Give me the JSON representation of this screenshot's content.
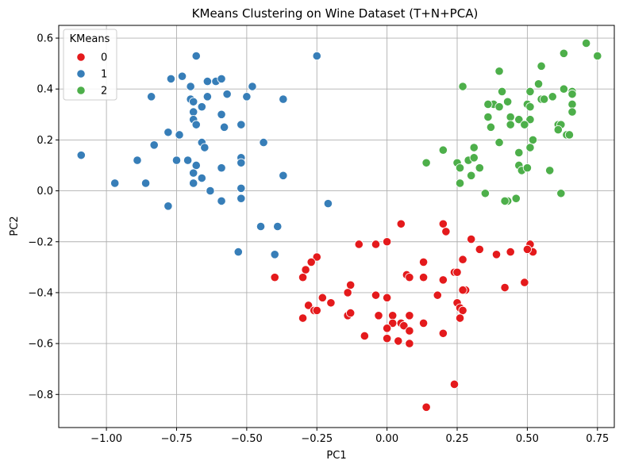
{
  "chart_data": {
    "type": "scatter",
    "title": "KMeans Clustering on Wine Dataset (T+N+PCA)",
    "xlabel": "PC1",
    "ylabel": "PC2",
    "xlim": [
      -1.17,
      0.81
    ],
    "ylim": [
      -0.93,
      0.65
    ],
    "xticks": [
      -1.0,
      -0.75,
      -0.5,
      -0.25,
      0.0,
      0.25,
      0.5,
      0.75
    ],
    "xtick_labels": [
      "−1.00",
      "−0.75",
      "−0.50",
      "−0.25",
      "0.00",
      "0.25",
      "0.50",
      "0.75"
    ],
    "yticks": [
      -0.8,
      -0.6,
      -0.4,
      -0.2,
      0.0,
      0.2,
      0.4,
      0.6
    ],
    "ytick_labels": [
      "−0.8",
      "−0.6",
      "−0.4",
      "−0.2",
      "0.0",
      "0.2",
      "0.4",
      "0.6"
    ],
    "grid": true,
    "legend": {
      "title": "KMeans",
      "position": "top-left"
    },
    "series": [
      {
        "name": "0",
        "color": "#e41a1c",
        "points": [
          [
            0.05,
            -0.13
          ],
          [
            0.2,
            -0.13
          ],
          [
            0.21,
            -0.16
          ],
          [
            0.3,
            -0.19
          ],
          [
            0.33,
            -0.23
          ],
          [
            0.44,
            -0.24
          ],
          [
            0.39,
            -0.25
          ],
          [
            0.51,
            -0.21
          ],
          [
            0.52,
            -0.24
          ],
          [
            0.5,
            -0.23
          ],
          [
            -0.1,
            -0.21
          ],
          [
            -0.04,
            -0.21
          ],
          [
            0.0,
            -0.2
          ],
          [
            -0.25,
            -0.26
          ],
          [
            -0.27,
            -0.28
          ],
          [
            -0.29,
            -0.31
          ],
          [
            -0.3,
            -0.34
          ],
          [
            -0.4,
            -0.34
          ],
          [
            0.07,
            -0.33
          ],
          [
            0.08,
            -0.34
          ],
          [
            0.13,
            -0.34
          ],
          [
            0.2,
            -0.35
          ],
          [
            0.24,
            -0.32
          ],
          [
            0.25,
            -0.32
          ],
          [
            0.27,
            -0.27
          ],
          [
            -0.13,
            -0.37
          ],
          [
            -0.14,
            -0.4
          ],
          [
            -0.04,
            -0.41
          ],
          [
            0.0,
            -0.42
          ],
          [
            -0.23,
            -0.42
          ],
          [
            -0.28,
            -0.45
          ],
          [
            -0.26,
            -0.47
          ],
          [
            -0.25,
            -0.47
          ],
          [
            -0.2,
            -0.44
          ],
          [
            0.18,
            -0.41
          ],
          [
            0.25,
            -0.44
          ],
          [
            0.26,
            -0.46
          ],
          [
            0.27,
            -0.47
          ],
          [
            0.28,
            -0.39
          ],
          [
            0.27,
            -0.39
          ],
          [
            0.42,
            -0.38
          ],
          [
            0.49,
            -0.36
          ],
          [
            -0.3,
            -0.5
          ],
          [
            -0.14,
            -0.49
          ],
          [
            -0.13,
            -0.48
          ],
          [
            -0.03,
            -0.49
          ],
          [
            0.02,
            -0.49
          ],
          [
            0.08,
            -0.49
          ],
          [
            0.02,
            -0.52
          ],
          [
            0.05,
            -0.52
          ],
          [
            0.06,
            -0.53
          ],
          [
            0.13,
            -0.52
          ],
          [
            0.26,
            -0.5
          ],
          [
            0.0,
            -0.54
          ],
          [
            0.0,
            -0.58
          ],
          [
            -0.08,
            -0.57
          ],
          [
            0.04,
            -0.59
          ],
          [
            0.08,
            -0.55
          ],
          [
            0.08,
            -0.6
          ],
          [
            0.2,
            -0.56
          ],
          [
            0.13,
            -0.28
          ],
          [
            0.24,
            -0.76
          ],
          [
            0.14,
            -0.85
          ]
        ]
      },
      {
        "name": "1",
        "color": "#377eb8",
        "points": [
          [
            -0.68,
            0.53
          ],
          [
            -0.25,
            0.53
          ],
          [
            -0.73,
            0.45
          ],
          [
            -0.77,
            0.44
          ],
          [
            -0.64,
            0.43
          ],
          [
            -0.61,
            0.43
          ],
          [
            -0.59,
            0.44
          ],
          [
            -0.7,
            0.41
          ],
          [
            -0.48,
            0.41
          ],
          [
            -0.84,
            0.37
          ],
          [
            -0.7,
            0.36
          ],
          [
            -0.69,
            0.35
          ],
          [
            -0.64,
            0.37
          ],
          [
            -0.57,
            0.38
          ],
          [
            -0.5,
            0.37
          ],
          [
            -0.37,
            0.36
          ],
          [
            -0.66,
            0.33
          ],
          [
            -0.69,
            0.31
          ],
          [
            -0.59,
            0.3
          ],
          [
            -0.69,
            0.28
          ],
          [
            -0.68,
            0.26
          ],
          [
            -0.52,
            0.26
          ],
          [
            -0.58,
            0.25
          ],
          [
            -0.78,
            0.23
          ],
          [
            -0.74,
            0.22
          ],
          [
            -0.66,
            0.19
          ],
          [
            -0.65,
            0.17
          ],
          [
            -0.83,
            0.18
          ],
          [
            -0.44,
            0.19
          ],
          [
            -1.09,
            0.14
          ],
          [
            -0.89,
            0.12
          ],
          [
            -0.75,
            0.12
          ],
          [
            -0.71,
            0.12
          ],
          [
            -0.52,
            0.13
          ],
          [
            -0.52,
            0.11
          ],
          [
            -0.68,
            0.1
          ],
          [
            -0.59,
            0.09
          ],
          [
            -0.69,
            0.07
          ],
          [
            -0.66,
            0.05
          ],
          [
            -0.37,
            0.06
          ],
          [
            -0.97,
            0.03
          ],
          [
            -0.86,
            0.03
          ],
          [
            -0.69,
            0.03
          ],
          [
            -0.63,
            0.0
          ],
          [
            -0.52,
            0.01
          ],
          [
            -0.52,
            -0.03
          ],
          [
            -0.59,
            -0.04
          ],
          [
            -0.78,
            -0.06
          ],
          [
            -0.21,
            -0.05
          ],
          [
            -0.45,
            -0.14
          ],
          [
            -0.39,
            -0.14
          ],
          [
            -0.53,
            -0.24
          ],
          [
            -0.4,
            -0.25
          ]
        ]
      },
      {
        "name": "2",
        "color": "#4daf4a",
        "points": [
          [
            0.71,
            0.58
          ],
          [
            0.75,
            0.53
          ],
          [
            0.63,
            0.54
          ],
          [
            0.55,
            0.49
          ],
          [
            0.4,
            0.47
          ],
          [
            0.27,
            0.41
          ],
          [
            0.41,
            0.39
          ],
          [
            0.51,
            0.39
          ],
          [
            0.54,
            0.42
          ],
          [
            0.63,
            0.4
          ],
          [
            0.66,
            0.39
          ],
          [
            0.66,
            0.38
          ],
          [
            0.43,
            0.35
          ],
          [
            0.38,
            0.34
          ],
          [
            0.36,
            0.34
          ],
          [
            0.4,
            0.33
          ],
          [
            0.5,
            0.34
          ],
          [
            0.55,
            0.36
          ],
          [
            0.56,
            0.36
          ],
          [
            0.59,
            0.37
          ],
          [
            0.66,
            0.34
          ],
          [
            0.66,
            0.31
          ],
          [
            0.51,
            0.33
          ],
          [
            0.36,
            0.29
          ],
          [
            0.44,
            0.29
          ],
          [
            0.47,
            0.28
          ],
          [
            0.51,
            0.28
          ],
          [
            0.44,
            0.26
          ],
          [
            0.49,
            0.26
          ],
          [
            0.37,
            0.25
          ],
          [
            0.61,
            0.26
          ],
          [
            0.62,
            0.26
          ],
          [
            0.61,
            0.24
          ],
          [
            0.64,
            0.22
          ],
          [
            0.65,
            0.22
          ],
          [
            0.4,
            0.19
          ],
          [
            0.52,
            0.2
          ],
          [
            0.51,
            0.17
          ],
          [
            0.31,
            0.17
          ],
          [
            0.2,
            0.16
          ],
          [
            0.29,
            0.12
          ],
          [
            0.31,
            0.13
          ],
          [
            0.25,
            0.11
          ],
          [
            0.14,
            0.11
          ],
          [
            0.33,
            0.09
          ],
          [
            0.26,
            0.09
          ],
          [
            0.47,
            0.1
          ],
          [
            0.48,
            0.08
          ],
          [
            0.5,
            0.09
          ],
          [
            0.58,
            0.08
          ],
          [
            0.3,
            0.06
          ],
          [
            0.26,
            0.03
          ],
          [
            0.35,
            -0.01
          ],
          [
            0.62,
            -0.01
          ],
          [
            0.43,
            -0.04
          ],
          [
            0.46,
            -0.03
          ],
          [
            0.42,
            -0.04
          ],
          [
            0.47,
            0.15
          ]
        ]
      }
    ]
  }
}
